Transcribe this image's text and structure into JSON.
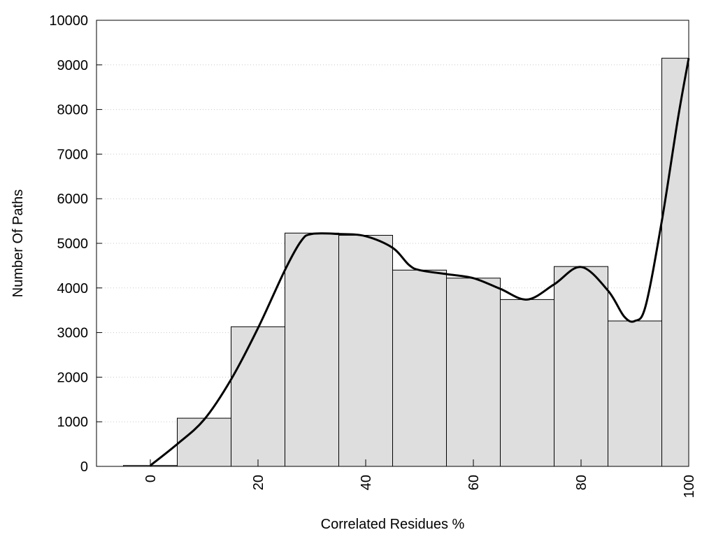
{
  "chart_data": {
    "type": "bar",
    "title": "",
    "xlabel": "Correlated Residues %",
    "ylabel": "Number Of Paths",
    "xlim": [
      -10,
      100
    ],
    "ylim": [
      0,
      10000
    ],
    "x_ticks": [
      0,
      20,
      40,
      60,
      80,
      100
    ],
    "y_ticks": [
      0,
      1000,
      2000,
      3000,
      4000,
      5000,
      6000,
      7000,
      8000,
      9000,
      10000
    ],
    "grid": "horizontal dotted",
    "bin_width": 10,
    "bins": [
      {
        "center": 0,
        "value": 20
      },
      {
        "center": 10,
        "value": 1080
      },
      {
        "center": 20,
        "value": 3130
      },
      {
        "center": 30,
        "value": 5230
      },
      {
        "center": 40,
        "value": 5180
      },
      {
        "center": 50,
        "value": 4400
      },
      {
        "center": 60,
        "value": 4220
      },
      {
        "center": 70,
        "value": 3740
      },
      {
        "center": 80,
        "value": 4480
      },
      {
        "center": 90,
        "value": 3260
      },
      {
        "center": 100,
        "value": 9150
      }
    ],
    "curve": {
      "x": [
        0,
        5,
        10,
        15,
        20,
        25,
        28,
        30,
        35,
        40,
        45,
        48,
        50,
        55,
        60,
        65,
        70,
        75,
        80,
        85,
        88,
        90,
        92,
        95,
        98,
        100
      ],
      "y": [
        20,
        500,
        1050,
        1950,
        3100,
        4400,
        5050,
        5210,
        5210,
        5160,
        4900,
        4520,
        4400,
        4310,
        4220,
        3980,
        3740,
        4080,
        4470,
        3940,
        3360,
        3260,
        3600,
        5500,
        7800,
        9150
      ]
    },
    "colors": {
      "bar_fill": "#dedede",
      "bar_stroke": "#000000",
      "curve": "#000000",
      "grid": "#c8c8c8"
    }
  }
}
